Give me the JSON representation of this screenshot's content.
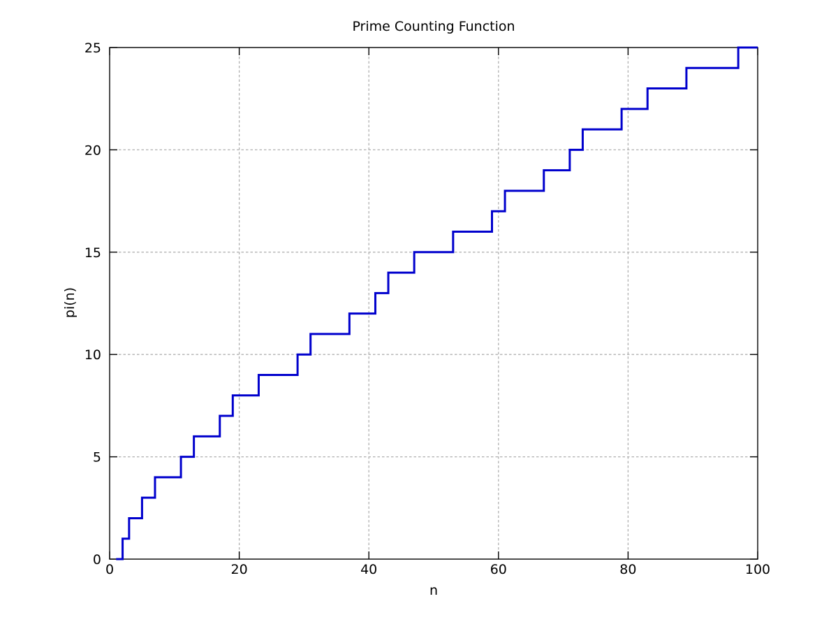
{
  "chart_data": {
    "type": "line",
    "subtype": "step-post",
    "title": "Prime Counting Function",
    "xlabel": "n",
    "ylabel": "pi(n)",
    "xlim": [
      0,
      100
    ],
    "ylim": [
      0,
      25
    ],
    "xticks": [
      0,
      20,
      40,
      60,
      80,
      100
    ],
    "yticks": [
      0,
      5,
      10,
      15,
      20,
      25
    ],
    "grid": true,
    "legend": "none",
    "colors": {
      "line": "#0000CD",
      "grid": "#B0B0B0",
      "axis": "#000000",
      "background": "#FFFFFF",
      "text": "#000000"
    },
    "series": [
      {
        "name": "pi(n)",
        "style": "steps-post",
        "x_start": 1,
        "y_start": 0,
        "x_end": 100,
        "y_end": 25,
        "jump_points_primes": [
          2,
          3,
          5,
          7,
          11,
          13,
          17,
          19,
          23,
          29,
          31,
          37,
          41,
          43,
          47,
          53,
          59,
          61,
          67,
          71,
          73,
          79,
          83,
          89,
          97
        ]
      }
    ]
  }
}
